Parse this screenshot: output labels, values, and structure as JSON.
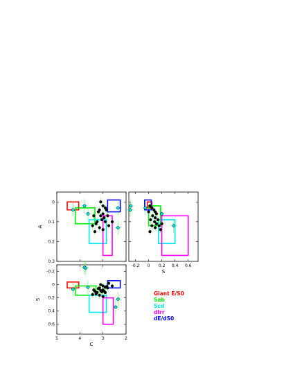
{
  "page": {
    "background": "#ffffff"
  },
  "legend": [
    {
      "label": "Giant  E/S0",
      "color": "#ff0000"
    },
    {
      "label": "Sab",
      "color": "#00ee00"
    },
    {
      "label": "Scd",
      "color": "#00e5ee"
    },
    {
      "label": "dIrr",
      "color": "#ff00ff"
    },
    {
      "label": "dE/dS0",
      "color": "#0000ff"
    }
  ],
  "colors": {
    "black_points": "#000000",
    "cyan_points": "#00e5ee",
    "errorbars": "#33ff33"
  },
  "chart_data": [
    {
      "type": "scatter",
      "panel": "top-left",
      "xlabel": "",
      "ylabel": "A",
      "xlim": [
        5,
        2
      ],
      "ylim": [
        0.3,
        -0.05
      ],
      "xticks": [
        5,
        4,
        3,
        2
      ],
      "xticklabels": [],
      "yticks": [
        0,
        0.1,
        0.2,
        0.3
      ],
      "yticklabels": [
        "0",
        "0.1",
        "0.2",
        "0.3"
      ],
      "regions": [
        {
          "name": "Giant  E/S0",
          "x": [
            4.55,
            4.05
          ],
          "y": [
            0.0,
            0.04
          ]
        },
        {
          "name": "Sab",
          "x": [
            4.2,
            3.35
          ],
          "y": [
            0.03,
            0.11
          ]
        },
        {
          "name": "Scd",
          "x": [
            3.6,
            2.85
          ],
          "y": [
            0.09,
            0.21
          ]
        },
        {
          "name": "dIrr",
          "x": [
            3.0,
            2.6
          ],
          "y": [
            0.07,
            0.27
          ]
        },
        {
          "name": "dE/dS0",
          "x": [
            2.8,
            2.25
          ],
          "y": [
            -0.01,
            0.05
          ]
        }
      ],
      "series": [
        {
          "marker": "black",
          "points": [
            [
              3.1,
              0.0
            ],
            [
              3.0,
              0.02
            ],
            [
              2.9,
              0.03
            ],
            [
              3.15,
              0.04
            ],
            [
              3.2,
              0.05
            ],
            [
              2.85,
              0.04
            ],
            [
              3.0,
              0.06
            ],
            [
              3.1,
              0.07
            ],
            [
              2.95,
              0.08
            ],
            [
              3.4,
              0.07
            ],
            [
              2.8,
              0.07
            ],
            [
              3.05,
              0.09
            ],
            [
              3.25,
              0.1
            ],
            [
              2.9,
              0.1
            ],
            [
              3.3,
              0.11
            ],
            [
              3.45,
              0.12
            ],
            [
              2.75,
              0.12
            ],
            [
              3.15,
              0.13
            ],
            [
              3.0,
              0.14
            ],
            [
              2.6,
              0.1
            ],
            [
              3.35,
              0.15
            ]
          ]
        },
        {
          "marker": "cyan",
          "points": [
            [
              3.8,
              0.02
            ],
            [
              4.3,
              0.04
            ],
            [
              2.35,
              0.03
            ],
            [
              2.35,
              0.13
            ],
            [
              3.65,
              0.06
            ]
          ]
        }
      ]
    },
    {
      "type": "scatter",
      "panel": "top-right",
      "xlabel": "S",
      "ylabel": "",
      "xlim": [
        -0.3,
        0.75
      ],
      "ylim": [
        0.3,
        -0.05
      ],
      "xticks": [
        -0.2,
        0,
        0.2,
        0.4,
        0.6
      ],
      "xticklabels": [
        "-0.2",
        "0",
        "0.2",
        "0.4",
        "0.6"
      ],
      "yticks": [
        0,
        0.1,
        0.2,
        0.3
      ],
      "yticklabels": [],
      "regions": [
        {
          "name": "Giant  E/S0",
          "x": [
            -0.02,
            0.05
          ],
          "y": [
            0.0,
            0.03
          ]
        },
        {
          "name": "Sab",
          "x": [
            0.0,
            0.18
          ],
          "y": [
            0.02,
            0.12
          ]
        },
        {
          "name": "Scd",
          "x": [
            0.15,
            0.4
          ],
          "y": [
            0.09,
            0.21
          ]
        },
        {
          "name": "dIrr",
          "x": [
            0.2,
            0.6
          ],
          "y": [
            0.07,
            0.27
          ]
        },
        {
          "name": "dE/dS0",
          "x": [
            -0.06,
            0.04
          ],
          "y": [
            -0.01,
            0.04
          ]
        }
      ],
      "series": [
        {
          "marker": "black",
          "points": [
            [
              0.02,
              0.02
            ],
            [
              0.05,
              0.03
            ],
            [
              0.08,
              0.04
            ],
            [
              0.1,
              0.05
            ],
            [
              0.12,
              0.06
            ],
            [
              0.0,
              0.05
            ],
            [
              0.06,
              0.07
            ],
            [
              0.1,
              0.08
            ],
            [
              0.14,
              0.09
            ],
            [
              0.03,
              0.09
            ],
            [
              0.09,
              0.1
            ],
            [
              0.12,
              0.11
            ],
            [
              0.16,
              0.12
            ],
            [
              0.05,
              0.12
            ],
            [
              0.2,
              0.11
            ],
            [
              0.1,
              0.13
            ],
            [
              0.18,
              0.14
            ],
            [
              0.02,
              0.15
            ]
          ]
        },
        {
          "marker": "cyan",
          "points": [
            [
              -0.27,
              0.02
            ],
            [
              -0.28,
              0.04
            ],
            [
              0.38,
              0.12
            ],
            [
              -0.05,
              0.03
            ],
            [
              0.2,
              0.06
            ]
          ]
        }
      ]
    },
    {
      "type": "scatter",
      "panel": "bottom-left",
      "xlabel": "C",
      "ylabel": "S",
      "xlim": [
        5,
        2
      ],
      "ylim": [
        0.75,
        -0.3
      ],
      "xticks": [
        5,
        4,
        3,
        2
      ],
      "xticklabels": [
        "5",
        "4",
        "3",
        "2"
      ],
      "yticks": [
        -0.2,
        0,
        0.2,
        0.4,
        0.6
      ],
      "yticklabels": [
        "-0.2",
        "0",
        "0.2",
        "0.4",
        "0.6"
      ],
      "regions": [
        {
          "name": "Giant  E/S0",
          "x": [
            4.55,
            4.05
          ],
          "y": [
            -0.04,
            0.05
          ]
        },
        {
          "name": "Sab",
          "x": [
            4.2,
            3.3
          ],
          "y": [
            0.02,
            0.16
          ]
        },
        {
          "name": "Scd",
          "x": [
            3.6,
            2.85
          ],
          "y": [
            0.16,
            0.42
          ]
        },
        {
          "name": "dIrr",
          "x": [
            3.0,
            2.55
          ],
          "y": [
            0.2,
            0.6
          ]
        },
        {
          "name": "dE/dS0",
          "x": [
            2.8,
            2.25
          ],
          "y": [
            -0.06,
            0.05
          ]
        }
      ],
      "series": [
        {
          "marker": "black",
          "points": [
            [
              3.1,
              0.0
            ],
            [
              3.0,
              0.02
            ],
            [
              2.9,
              0.04
            ],
            [
              3.15,
              0.05
            ],
            [
              3.2,
              0.06
            ],
            [
              2.85,
              0.03
            ],
            [
              3.0,
              0.08
            ],
            [
              3.1,
              0.09
            ],
            [
              2.95,
              0.1
            ],
            [
              3.4,
              0.08
            ],
            [
              2.8,
              0.05
            ],
            [
              3.05,
              0.11
            ],
            [
              3.25,
              0.12
            ],
            [
              2.9,
              0.12
            ],
            [
              3.3,
              0.14
            ],
            [
              3.45,
              0.15
            ],
            [
              2.75,
              -0.02
            ],
            [
              3.15,
              0.16
            ],
            [
              3.0,
              0.18
            ],
            [
              2.6,
              0.02
            ],
            [
              3.35,
              0.1
            ]
          ]
        },
        {
          "marker": "cyan",
          "points": [
            [
              3.8,
              -0.26
            ],
            [
              3.75,
              -0.25
            ],
            [
              4.3,
              0.07
            ],
            [
              2.35,
              0.22
            ],
            [
              2.45,
              0.34
            ],
            [
              3.65,
              0.04
            ]
          ]
        }
      ]
    }
  ]
}
